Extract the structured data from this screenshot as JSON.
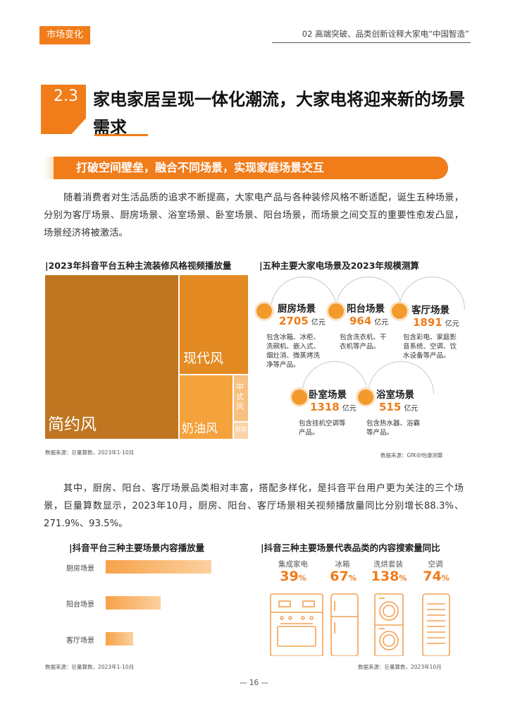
{
  "header": {
    "tag": "市场变化",
    "chapter": "02 高端突破、品类创新诠释大家电“中国智造”"
  },
  "section": {
    "number": "2.3",
    "title": "家电家居呈现一体化潮流，大家电将迎来新的场景需求"
  },
  "banner": "打破空间壁垒，融合不同场景，实现家庭场景交互",
  "para1": "随着消费者对生活品质的追求不断提高，大家电产品与各种装修风格不断适配，诞生五种场景，分别为客厅场景、厨房场景、浴室场景、卧室场景、阳台场景，而场景之间交互的重要性愈发凸显，场景经济将被激活。",
  "treemap": {
    "title": "|2023年抖音平台五种主流装修风格视频播放量",
    "labels": [
      "简约风",
      "现代风",
      "奶油风",
      "中式风",
      "欧美"
    ],
    "source": "数据来源：巨量算数，2023年1-10月"
  },
  "scenes": {
    "title": "|五种主要大家电场景及2023年规模测算",
    "unit": "亿元",
    "items": [
      {
        "name": "厨房场景",
        "value": "2705",
        "desc": [
          "包含冰箱、冰柜、",
          "洗碗机、嵌入式、",
          "烟灶消、微蒸烤洗",
          "净等产品。"
        ]
      },
      {
        "name": "阳台场景",
        "value": "964",
        "desc": [
          "包含洗衣机、干",
          "衣机等产品。"
        ]
      },
      {
        "name": "客厅场景",
        "value": "1891",
        "desc": [
          "包含彩电、家庭影",
          "音系统、空调、饮",
          "水设备等产品。"
        ]
      },
      {
        "name": "卧室场景",
        "value": "1318",
        "desc": [
          "包含挂机空调等",
          "产品。"
        ]
      },
      {
        "name": "浴室场景",
        "value": "515",
        "desc": [
          "包含热水器、浴霸",
          "等产品。"
        ]
      }
    ],
    "source": "数据来源：GfK中怡康测算"
  },
  "para2": "其中，厨房、阳台、客厅场景品类相对丰富，搭配多样化，是抖音平台用户更为关注的三个场景，巨量算数显示，2023年10月，厨房、阳台、客厅场景相关视频播放量同比分别增长88.3%、271.9%、93.5%。",
  "bars": {
    "title": "|抖音平台三种主要场景内容播放量",
    "source": "数据来源：巨量算数，2023年1-10月"
  },
  "chart_data": [
    {
      "type": "bar",
      "title": "|抖音平台三种主要场景内容播放量",
      "categories": [
        "厨房场景",
        "阳台场景",
        "客厅场景"
      ],
      "values": [
        1.0,
        0.52,
        0.26
      ]
    },
    {
      "type": "bar",
      "title": "|抖音三种主要场景代表品类的内容搜索量同比",
      "categories": [
        "集成家电",
        "冰箱",
        "洗烘套装",
        "空调"
      ],
      "values": [
        39,
        67,
        138,
        74
      ],
      "unit": "%"
    }
  ],
  "growth": {
    "title": "|抖音三种主要场景代表品类的内容搜索量同比",
    "items": [
      {
        "label": "集成家电",
        "value": "39",
        "unit": "%"
      },
      {
        "label": "冰箱",
        "value": "67",
        "unit": "%"
      },
      {
        "label": "洗烘套装",
        "value": "138",
        "unit": "%"
      },
      {
        "label": "空调",
        "value": "74",
        "unit": "%"
      }
    ],
    "source": "数据来源：巨量算数，2023年10月"
  },
  "page": "— 16 —"
}
